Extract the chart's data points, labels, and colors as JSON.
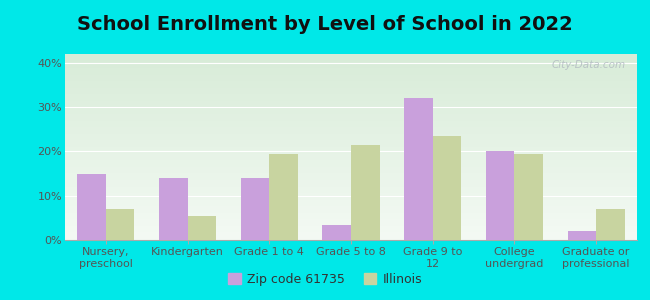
{
  "title": "School Enrollment by Level of School in 2022",
  "categories": [
    "Nursery,\npreschool",
    "Kindergarten",
    "Grade 1 to 4",
    "Grade 5 to 8",
    "Grade 9 to\n12",
    "College\nundergrad",
    "Graduate or\nprofessional"
  ],
  "zip_values": [
    15.0,
    14.0,
    14.0,
    3.5,
    32.0,
    20.0,
    2.0
  ],
  "illinois_values": [
    7.0,
    5.5,
    19.5,
    21.5,
    23.5,
    19.5,
    7.0
  ],
  "zip_color": "#c9a0dc",
  "illinois_color": "#c8d4a0",
  "background_color": "#00e8e8",
  "plot_bg_top": "#d8ecd8",
  "plot_bg_bottom": "#f4faf4",
  "ylim": [
    0,
    42
  ],
  "yticks": [
    0,
    10,
    20,
    30,
    40
  ],
  "ytick_labels": [
    "0%",
    "10%",
    "20%",
    "30%",
    "40%"
  ],
  "legend_label_zip": "Zip code 61735",
  "legend_label_il": "Illinois",
  "title_fontsize": 14,
  "tick_fontsize": 8,
  "legend_fontsize": 9,
  "watermark": "City-Data.com"
}
